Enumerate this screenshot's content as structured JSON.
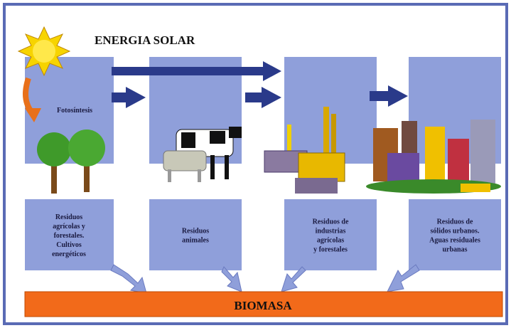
{
  "title": "ENERGIA SOLAR",
  "photosynthesis_label": "Fotosíntesis",
  "sources": [
    {
      "lines": [
        "Residuos",
        "agrícolas y",
        "forestales.",
        "Cultivos",
        "energéticos"
      ]
    },
    {
      "lines": [
        "Residuos",
        "animales"
      ]
    },
    {
      "lines": [
        "Residuos de",
        "industrias",
        "agrícolas",
        "y forestales"
      ]
    },
    {
      "lines": [
        "Residuos de",
        "sólidos urbanos.",
        "Aguas residuales",
        "urbanas"
      ]
    }
  ],
  "output_label": "BIOMASA"
}
